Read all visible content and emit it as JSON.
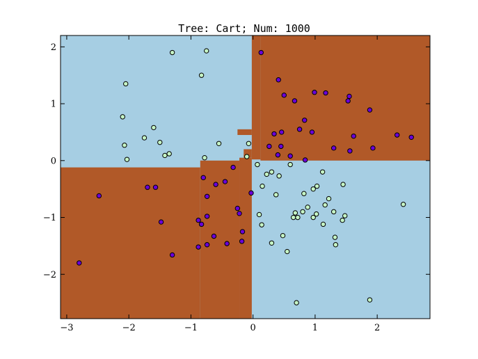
{
  "chart_data": {
    "type": "scatter",
    "title": "Tree: Cart; Num: 1000",
    "xlabel": "",
    "ylabel": "",
    "xlim": [
      -3.1,
      2.85
    ],
    "ylim": [
      -2.78,
      2.2
    ],
    "grid": false,
    "legend": "none",
    "colors": {
      "region_class_0": "#a6cee3",
      "region_class_1": "#b15928",
      "point_class_0": "#c5f5c5",
      "point_class_1": "#6a00d9",
      "point_edge": "#000000",
      "frame": "#000000"
    },
    "x_ticks": [
      {
        "value": -3,
        "label": "−3"
      },
      {
        "value": -2,
        "label": "−2"
      },
      {
        "value": -1,
        "label": "−1"
      },
      {
        "value": 0,
        "label": "0"
      },
      {
        "value": 1,
        "label": "1"
      },
      {
        "value": 2,
        "label": "2"
      }
    ],
    "y_ticks": [
      {
        "value": 2,
        "label": "2"
      },
      {
        "value": 1,
        "label": "1"
      },
      {
        "value": 0,
        "label": "0"
      },
      {
        "value": -1,
        "label": "−1"
      },
      {
        "value": -2,
        "label": "−2"
      }
    ],
    "decision_regions": {
      "background_class": 0,
      "class_1_regions": [
        {
          "x": [
            -3.1,
            -0.85
          ],
          "y": [
            -2.78,
            -0.12
          ]
        },
        {
          "x": [
            -0.85,
            -0.22
          ],
          "y": [
            -2.78,
            0.0
          ]
        },
        {
          "x": [
            -0.22,
            -0.02
          ],
          "y": [
            -2.78,
            0.05
          ]
        },
        {
          "x": [
            -0.15,
            -0.02
          ],
          "y": [
            0.05,
            0.2
          ]
        },
        {
          "x": [
            -0.25,
            -0.02
          ],
          "y": [
            0.45,
            0.55
          ]
        },
        {
          "x": [
            -0.02,
            0.12
          ],
          "y": [
            0.02,
            2.2
          ]
        },
        {
          "x": [
            0.12,
            2.85
          ],
          "y": [
            0.0,
            2.2
          ]
        }
      ]
    },
    "series": [
      {
        "class": 0,
        "points": [
          [
            -1.3,
            1.9
          ],
          [
            -0.75,
            1.93
          ],
          [
            -0.83,
            1.5
          ],
          [
            -2.05,
            1.35
          ],
          [
            -2.1,
            0.77
          ],
          [
            -1.6,
            0.58
          ],
          [
            -1.75,
            0.4
          ],
          [
            -1.5,
            0.32
          ],
          [
            -2.07,
            0.27
          ],
          [
            -0.55,
            0.3
          ],
          [
            -1.35,
            0.12
          ],
          [
            -1.42,
            0.09
          ],
          [
            -2.03,
            0.02
          ],
          [
            -0.78,
            0.05
          ],
          [
            -0.07,
            0.3
          ],
          [
            -0.1,
            0.07
          ],
          [
            0.07,
            -0.07
          ],
          [
            0.22,
            -0.24
          ],
          [
            0.3,
            -0.2
          ],
          [
            0.42,
            -0.27
          ],
          [
            0.6,
            -0.07
          ],
          [
            0.15,
            -0.45
          ],
          [
            0.37,
            -0.6
          ],
          [
            0.82,
            -0.58
          ],
          [
            0.97,
            -0.5
          ],
          [
            1.03,
            -0.45
          ],
          [
            1.12,
            -0.2
          ],
          [
            1.45,
            -0.42
          ],
          [
            1.22,
            -0.67
          ],
          [
            0.88,
            -0.82
          ],
          [
            1.16,
            -0.78
          ],
          [
            0.8,
            -0.9
          ],
          [
            0.68,
            -0.92
          ],
          [
            0.65,
            -1.0
          ],
          [
            0.72,
            -1.0
          ],
          [
            1.02,
            -0.94
          ],
          [
            0.97,
            -1.0
          ],
          [
            1.3,
            -0.9
          ],
          [
            1.48,
            -0.97
          ],
          [
            1.44,
            -1.05
          ],
          [
            0.1,
            -0.95
          ],
          [
            0.14,
            -1.13
          ],
          [
            1.13,
            -1.12
          ],
          [
            1.32,
            -1.35
          ],
          [
            1.33,
            -1.48
          ],
          [
            0.48,
            -1.32
          ],
          [
            0.3,
            -1.45
          ],
          [
            0.55,
            -1.6
          ],
          [
            2.42,
            -0.77
          ],
          [
            1.88,
            -2.45
          ],
          [
            0.7,
            -2.5
          ]
        ]
      },
      {
        "class": 1,
        "points": [
          [
            0.13,
            1.9
          ],
          [
            0.41,
            1.42
          ],
          [
            0.5,
            1.15
          ],
          [
            0.67,
            1.05
          ],
          [
            0.99,
            1.2
          ],
          [
            1.17,
            1.19
          ],
          [
            1.55,
            1.13
          ],
          [
            1.53,
            1.05
          ],
          [
            1.88,
            0.89
          ],
          [
            0.83,
            0.71
          ],
          [
            0.75,
            0.55
          ],
          [
            0.95,
            0.5
          ],
          [
            0.46,
            0.5
          ],
          [
            0.34,
            0.47
          ],
          [
            1.62,
            0.43
          ],
          [
            2.32,
            0.45
          ],
          [
            2.55,
            0.41
          ],
          [
            0.26,
            0.25
          ],
          [
            0.45,
            0.25
          ],
          [
            0.4,
            0.1
          ],
          [
            1.3,
            0.22
          ],
          [
            1.93,
            0.22
          ],
          [
            1.56,
            0.17
          ],
          [
            0.6,
            0.08
          ],
          [
            0.84,
            0.01
          ],
          [
            -0.32,
            -0.12
          ],
          [
            -0.8,
            -0.3
          ],
          [
            -0.45,
            -0.37
          ],
          [
            -0.6,
            -0.42
          ],
          [
            -1.7,
            -0.47
          ],
          [
            -1.57,
            -0.47
          ],
          [
            -2.48,
            -0.62
          ],
          [
            -0.74,
            -0.63
          ],
          [
            -0.25,
            -0.84
          ],
          [
            -0.03,
            -0.57
          ],
          [
            -0.22,
            -0.93
          ],
          [
            -0.74,
            -0.98
          ],
          [
            -0.88,
            -1.05
          ],
          [
            -0.83,
            -1.12
          ],
          [
            -1.48,
            -1.08
          ],
          [
            -0.17,
            -1.25
          ],
          [
            -0.63,
            -1.33
          ],
          [
            -0.18,
            -1.42
          ],
          [
            -0.42,
            -1.46
          ],
          [
            -0.74,
            -1.48
          ],
          [
            -0.88,
            -1.52
          ],
          [
            -1.3,
            -1.66
          ],
          [
            -2.8,
            -1.8
          ]
        ]
      }
    ]
  }
}
